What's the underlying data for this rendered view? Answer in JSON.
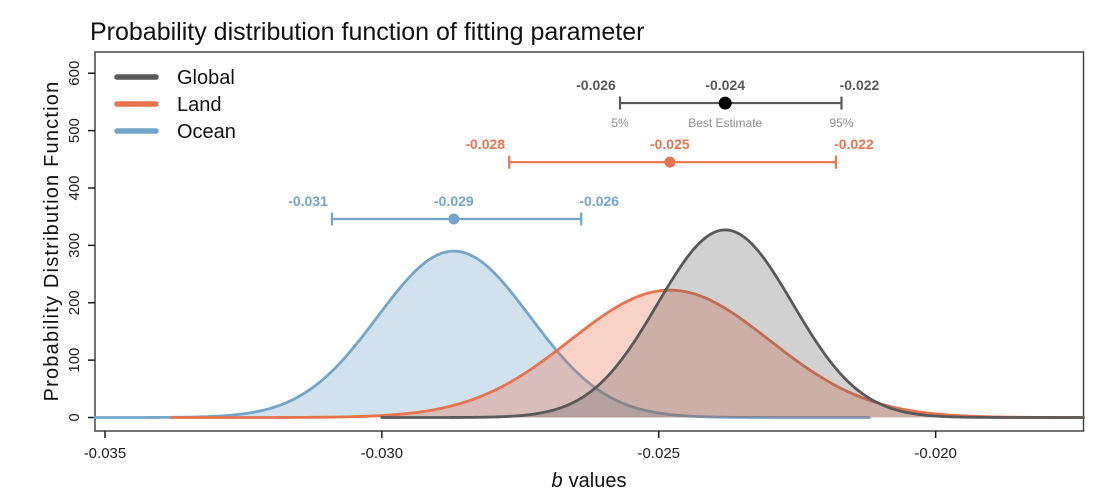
{
  "title": "Probability distribution function of fitting parameter",
  "colors": {
    "global": "#595959",
    "land": "#E8744E",
    "ocean": "#72A5C9",
    "global_dot": "#000000",
    "axis": "#1d1d1d",
    "frame": "#454545",
    "sub_label": "#8C8C8C",
    "background": "#FFFFFF"
  },
  "legend": {
    "items": [
      {
        "label": "Global",
        "color": "#595959"
      },
      {
        "label": "Land",
        "color": "#E8744E"
      },
      {
        "label": "Ocean",
        "color": "#72A5C9"
      }
    ]
  },
  "chart_data": {
    "type": "line",
    "title": "Probability distribution function of fitting parameter",
    "xlabel_italic": "b",
    "xlabel_rest": "values",
    "ylabel": "Probability Distribution Function",
    "xlim": [
      -0.03518,
      -0.01733
    ],
    "ylim": [
      -23.5,
      637
    ],
    "x_ticks": [
      -0.035,
      -0.03,
      -0.025,
      -0.02
    ],
    "x_tick_labels": [
      "-0.035",
      "-0.030",
      "-0.025",
      "-0.020"
    ],
    "y_ticks": [
      0,
      100,
      200,
      300,
      400,
      500,
      600
    ],
    "y_tick_labels": [
      "0",
      "100",
      "200",
      "300",
      "400",
      "500",
      "600"
    ],
    "grid": false,
    "legend_position": "top-left",
    "curve_model": "gaussian_pdf  y = peak * exp(-(x-mean)^2 / (2*sigma^2))",
    "series": [
      {
        "name": "Global",
        "color": "#595959",
        "fill_opacity": 0.28,
        "mean": -0.0238,
        "sigma": 0.00122,
        "peak": 327,
        "domain": [
          -0.03,
          -0.01733
        ]
      },
      {
        "name": "Land",
        "color": "#E8744E",
        "fill_opacity": 0.32,
        "mean": -0.0248,
        "sigma": 0.0018,
        "peak": 222,
        "domain": [
          -0.0338,
          -0.01733
        ]
      },
      {
        "name": "Ocean",
        "color": "#72A5C9",
        "fill_opacity": 0.33,
        "mean": -0.0287,
        "sigma": 0.001376,
        "peak": 290,
        "domain": [
          -0.03518,
          -0.0212
        ]
      }
    ],
    "draw_order": [
      "Ocean",
      "Land",
      "Global"
    ],
    "error_bars": [
      {
        "series": "Global",
        "color": "#595959",
        "dot_color": "#000000",
        "y": 548,
        "low": -0.0257,
        "best": -0.0238,
        "high": -0.0217,
        "labels": {
          "low": "-0.026",
          "best": "-0.024",
          "high": "-0.022"
        },
        "sub_labels": {
          "low": "5%",
          "best": "Best Estimate",
          "high": "95%"
        }
      },
      {
        "series": "Land",
        "color": "#E8744E",
        "dot_color": "#E8744E",
        "y": 445,
        "low": -0.0277,
        "best": -0.0248,
        "high": -0.0218,
        "labels": {
          "low": "-0.028",
          "best": "-0.025",
          "high": "-0.022"
        }
      },
      {
        "series": "Ocean",
        "color": "#72A5C9",
        "dot_color": "#72A5C9",
        "y": 346,
        "low": -0.0309,
        "best": -0.0287,
        "high": -0.0264,
        "labels": {
          "low": "-0.031",
          "best": "-0.029",
          "high": "-0.026"
        }
      }
    ]
  }
}
